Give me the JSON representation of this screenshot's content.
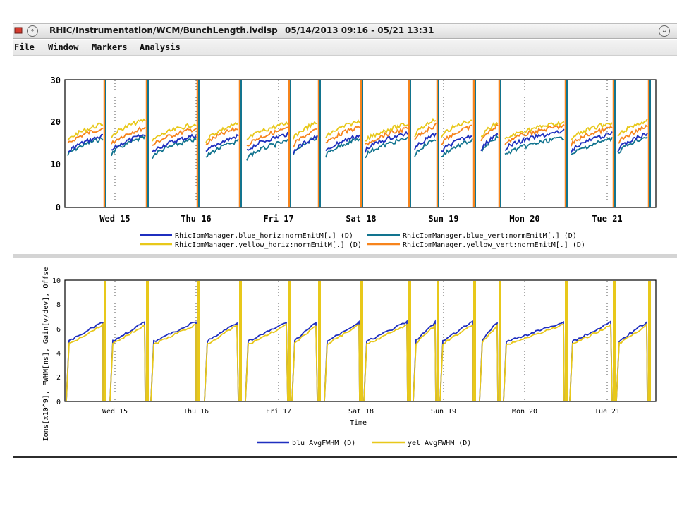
{
  "window": {
    "title": "RHIC/Instrumentation/WCM/BunchLength.lvdisp",
    "time_range": "05/14/2013 09:16 - 05/21 13:31"
  },
  "menu": [
    "File",
    "Window",
    "Markers",
    "Analysis"
  ],
  "top_plot": {
    "y_ticks": [
      "30",
      "20",
      "10",
      "0"
    ],
    "x_ticks": [
      "Wed 15",
      "Thu 16",
      "Fri 17",
      "Sat 18",
      "Sun 19",
      "Mon 20",
      "Tue 21"
    ],
    "legend": [
      {
        "label": "RhicIpmManager.blue_horiz:normEmitM[.] (D)",
        "color": "#1f2fbf"
      },
      {
        "label": "RhicIpmManager.blue_vert:normEmitM[.] (D)",
        "color": "#12748f"
      },
      {
        "label": "RhicIpmManager.yellow_horiz:normEmitM[.] (D)",
        "color": "#e8c81a"
      },
      {
        "label": "RhicIpmManager.yellow_vert:normEmitM[.] (D)",
        "color": "#f7841c"
      }
    ]
  },
  "bottom_plot": {
    "y_ticks": [
      "10",
      "8",
      "6",
      "4",
      "2",
      "0"
    ],
    "y_label": "Ions[x10^9], FWHM[ns], Gain[v/dev], Offse",
    "x_ticks": [
      "Wed 15",
      "Thu 16",
      "Fri 17",
      "Sat 18",
      "Sun 19",
      "Mon 20",
      "Tue 21"
    ],
    "x_label": "Time",
    "legend": [
      {
        "label": "blu_AvgFWHM (D)",
        "color": "#1f2fbf"
      },
      {
        "label": "yel_AvgFWHM (D)",
        "color": "#e8c81a"
      }
    ]
  }
}
